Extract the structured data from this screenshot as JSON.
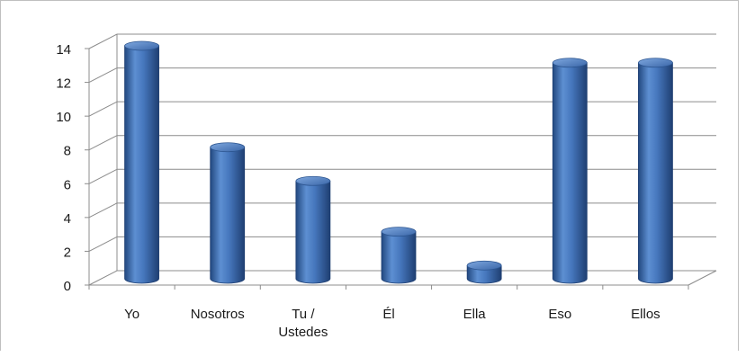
{
  "chart_data": {
    "type": "bar",
    "style": "3d-cylinder",
    "categories": [
      "Yo",
      "Nosotros",
      "Tu / Ustedes",
      "Él",
      "Ella",
      "Eso",
      "Ellos"
    ],
    "category_label_lines": [
      [
        "Yo"
      ],
      [
        "Nosotros"
      ],
      [
        "Tu /",
        "Ustedes"
      ],
      [
        "Él"
      ],
      [
        "Ella"
      ],
      [
        "Eso"
      ],
      [
        "Ellos"
      ]
    ],
    "values": [
      14,
      8,
      6,
      3,
      1,
      13,
      13
    ],
    "ylim": [
      0,
      14
    ],
    "yticks": [
      0,
      2,
      4,
      6,
      8,
      10,
      12,
      14
    ],
    "grid": true,
    "legend": "none",
    "bar_color": "#3f6fb3",
    "title": "",
    "xlabel": "",
    "ylabel": ""
  }
}
